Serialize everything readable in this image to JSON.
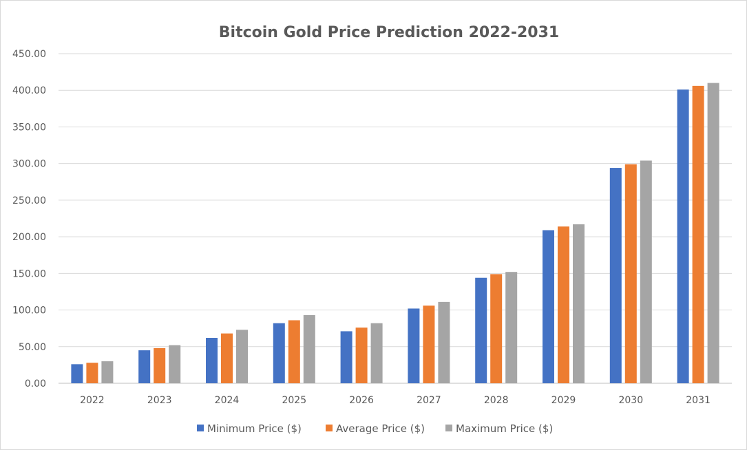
{
  "chart_data": {
    "type": "bar",
    "title": "Bitcoin Gold Price Prediction 2022-2031",
    "xlabel": "",
    "ylabel": "",
    "ylim": [
      0,
      450
    ],
    "y_ticks": [
      "0.00",
      "50.00",
      "100.00",
      "150.00",
      "200.00",
      "250.00",
      "300.00",
      "350.00",
      "400.00",
      "450.00"
    ],
    "y_tick_values": [
      0,
      50,
      100,
      150,
      200,
      250,
      300,
      350,
      400,
      450
    ],
    "grid": true,
    "legend_position": "bottom",
    "categories": [
      "2022",
      "2023",
      "2024",
      "2025",
      "2026",
      "2027",
      "2028",
      "2029",
      "2030",
      "2031"
    ],
    "series": [
      {
        "name": "Minimum Price ($)",
        "color": "#4472C4",
        "values": [
          26,
          45,
          62,
          82,
          71,
          102,
          144,
          209,
          294,
          401
        ]
      },
      {
        "name": "Average Price ($)",
        "color": "#ED7D31",
        "values": [
          28,
          48,
          68,
          86,
          76,
          106,
          149,
          214,
          299,
          406
        ]
      },
      {
        "name": "Maximum Price ($)",
        "color": "#A5A5A5",
        "values": [
          30,
          52,
          73,
          93,
          82,
          111,
          152,
          217,
          304,
          410
        ]
      }
    ]
  }
}
